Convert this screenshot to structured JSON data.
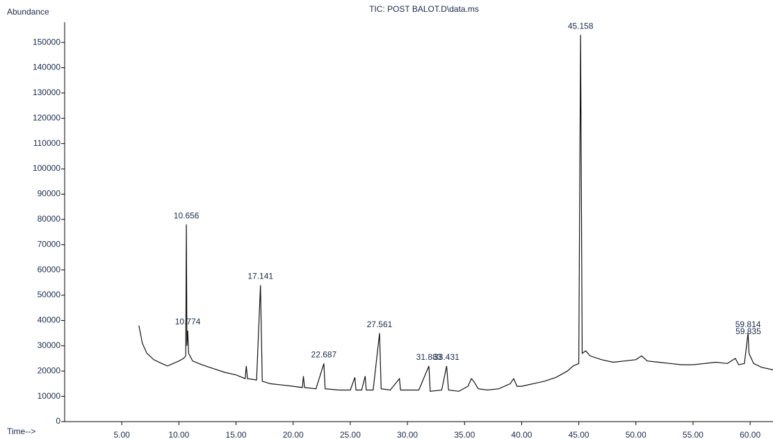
{
  "chart_data": {
    "type": "line",
    "title": "TIC: POST BALOT.D\\data.ms",
    "y_label": "Abundance",
    "x_label": "Time-->",
    "xlim": [
      0,
      62
    ],
    "ylim": [
      0,
      158000
    ],
    "xticks": [
      {
        "value": 5,
        "label": "5.00"
      },
      {
        "value": 10,
        "label": "10.00"
      },
      {
        "value": 15,
        "label": "15.00"
      },
      {
        "value": 20,
        "label": "20.00"
      },
      {
        "value": 25,
        "label": "25.00"
      },
      {
        "value": 30,
        "label": "30.00"
      },
      {
        "value": 35,
        "label": "35.00"
      },
      {
        "value": 40,
        "label": "40.00"
      },
      {
        "value": 45,
        "label": "45.00"
      },
      {
        "value": 50,
        "label": "50.00"
      },
      {
        "value": 55,
        "label": "55.00"
      },
      {
        "value": 60,
        "label": "60.00"
      }
    ],
    "yticks": [
      0,
      10000,
      20000,
      30000,
      40000,
      50000,
      60000,
      70000,
      80000,
      90000,
      100000,
      110000,
      120000,
      130000,
      140000,
      150000
    ],
    "series": [
      {
        "name": "TIC",
        "color": "#111111",
        "x": [
          6.5,
          6.8,
          7.2,
          7.8,
          8.5,
          9.0,
          9.5,
          10.0,
          10.4,
          10.6,
          10.656,
          10.7,
          10.774,
          10.85,
          11.2,
          12,
          13,
          14,
          15,
          15.8,
          15.9,
          16.0,
          16.8,
          17.141,
          17.3,
          18,
          19,
          20,
          20.8,
          20.9,
          21.0,
          22,
          22.687,
          22.8,
          24,
          25,
          25.4,
          25.5,
          26,
          26.3,
          26.4,
          27,
          27.561,
          27.7,
          28.5,
          29.3,
          29.4,
          30,
          31,
          31.883,
          32.0,
          33,
          33.431,
          33.6,
          34.5,
          35.3,
          35.6,
          35.8,
          36.2,
          37,
          38,
          39,
          39.3,
          39.6,
          40,
          41,
          42,
          43,
          44,
          44.5,
          45,
          45.158,
          45.3,
          45.6,
          46,
          47,
          48,
          49,
          50,
          50.5,
          51,
          52,
          53,
          54,
          55,
          56,
          57,
          58,
          58.7,
          59,
          59.5,
          59.814,
          59.9,
          60.3,
          61,
          62
        ],
        "values": [
          38000,
          31000,
          27000,
          24500,
          23000,
          22000,
          23000,
          24000,
          25000,
          26000,
          78000,
          30000,
          36000,
          27000,
          24000,
          22500,
          21000,
          19500,
          18500,
          17000,
          22000,
          17000,
          16500,
          54000,
          16000,
          15000,
          14500,
          14000,
          13500,
          18000,
          13500,
          13000,
          23000,
          13000,
          12500,
          12500,
          17500,
          12500,
          12500,
          18000,
          12500,
          12500,
          35000,
          13000,
          12500,
          17000,
          12500,
          12500,
          12500,
          22000,
          12000,
          12500,
          22000,
          12500,
          12000,
          14000,
          17000,
          16000,
          13000,
          12500,
          13000,
          15000,
          17000,
          14000,
          14000,
          15000,
          16000,
          17500,
          20000,
          22000,
          23000,
          153000,
          27000,
          28000,
          26000,
          24500,
          23500,
          24000,
          24500,
          26000,
          24000,
          23500,
          23000,
          22500,
          22500,
          23000,
          23500,
          23000,
          25000,
          22500,
          23000,
          35000,
          27000,
          23000,
          21500,
          20500
        ]
      }
    ],
    "peaks": [
      {
        "time": 10.656,
        "abundance": 78000
      },
      {
        "time": 10.774,
        "abundance": 36000
      },
      {
        "time": 17.141,
        "abundance": 54000
      },
      {
        "time": 22.687,
        "abundance": 23000
      },
      {
        "time": 27.561,
        "abundance": 35000
      },
      {
        "time": 31.883,
        "abundance": 22000
      },
      {
        "time": 33.431,
        "abundance": 22000
      },
      {
        "time": 45.158,
        "abundance": 153000
      },
      {
        "time": 59.814,
        "abundance": 35000
      },
      {
        "time": 59.835,
        "abundance": 35000
      }
    ]
  }
}
